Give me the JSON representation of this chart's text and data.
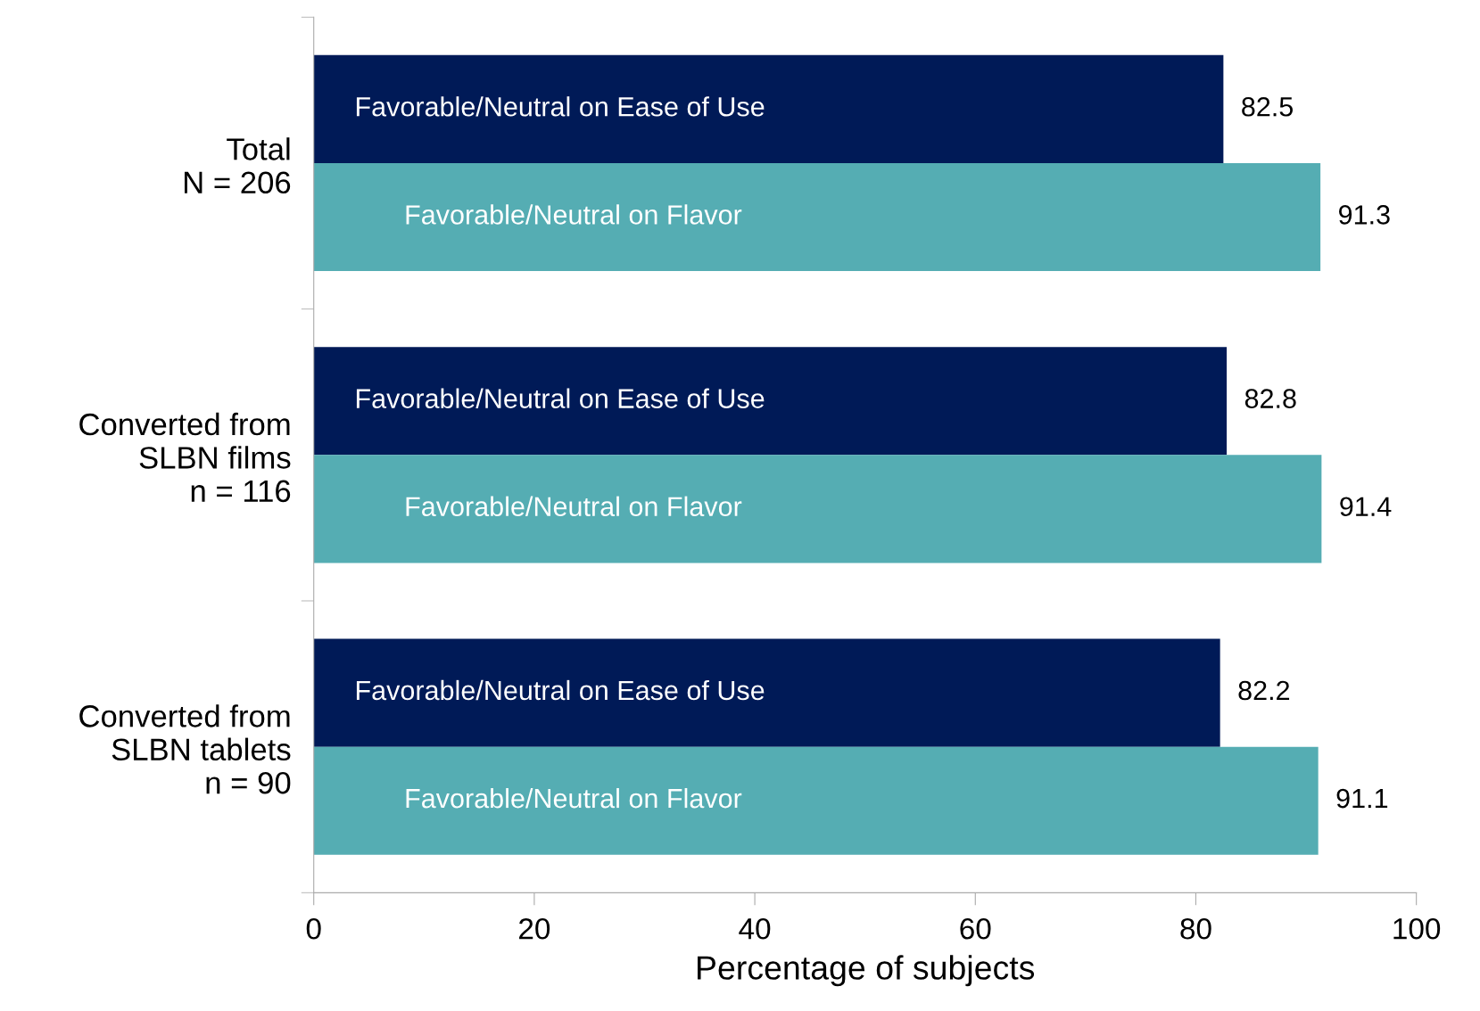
{
  "chart_data": {
    "type": "bar",
    "orientation": "horizontal",
    "xlabel": "Percentage of subjects",
    "categories": [
      "Total\nN = 206",
      "Converted from\nSLBN films\nn = 116",
      "Converted from\nSLBN tablets\nn = 90"
    ],
    "series": [
      {
        "name": "Favorable/Neutral on Ease of Use",
        "color": "#001a57",
        "values": [
          82.5,
          82.8,
          82.2
        ]
      },
      {
        "name": "Favorable/Neutral on Flavor",
        "color": "#55adb3",
        "values": [
          91.3,
          91.4,
          91.1
        ]
      }
    ],
    "xlim": [
      0,
      100
    ],
    "xticks": [
      0,
      20,
      40,
      60,
      80,
      100
    ],
    "data_labels": true,
    "grid": false,
    "legend": false
  }
}
